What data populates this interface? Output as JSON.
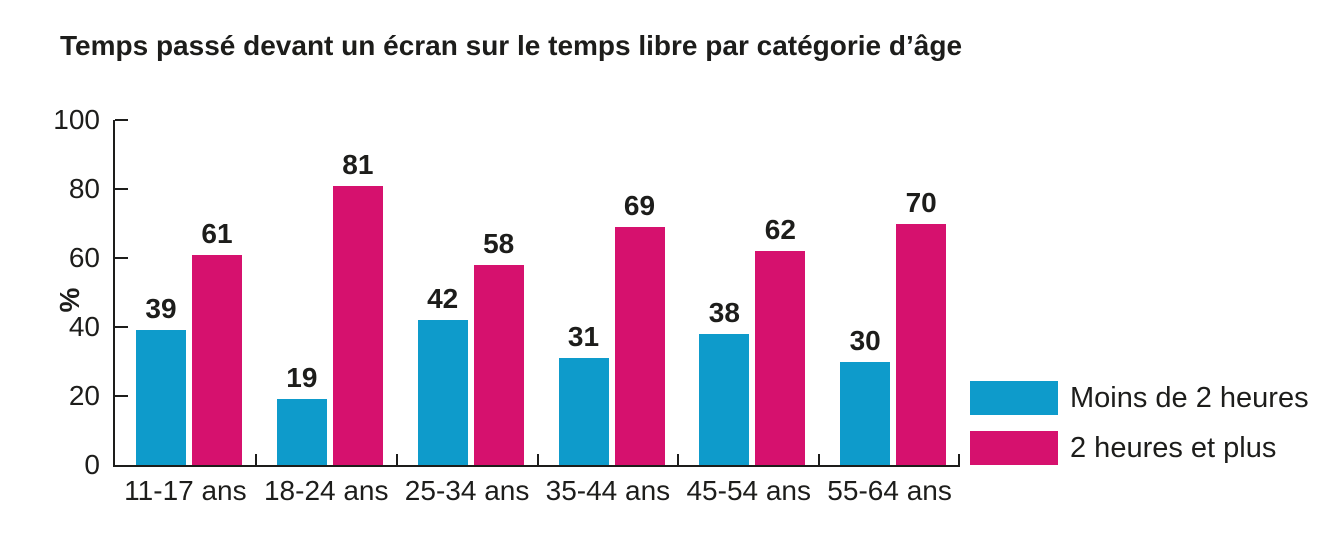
{
  "title": "Temps passé devant un écran sur le temps libre par catégorie d’âge",
  "chart_data": {
    "type": "bar",
    "title": "Temps passé devant un écran sur le temps libre par catégorie d’âge",
    "categories": [
      "11-17 ans",
      "18-24 ans",
      "25-34 ans",
      "35-44 ans",
      "45-54 ans",
      "55-64 ans"
    ],
    "series": [
      {
        "name": "Moins de 2 heures",
        "color": "#0e9bcb",
        "values": [
          39,
          19,
          42,
          31,
          38,
          30
        ]
      },
      {
        "name": "2 heures et plus",
        "color": "#d6116e",
        "values": [
          61,
          81,
          58,
          69,
          62,
          70
        ]
      }
    ],
    "xlabel": "",
    "ylabel": "%",
    "ylim": [
      0,
      100
    ],
    "yticks": [
      0,
      20,
      40,
      60,
      80,
      100
    ],
    "grid": false,
    "bar_value_labels": true,
    "legend_position": "bottom-right"
  },
  "colors": {
    "background": "#ffffff",
    "text": "#1d1d1b",
    "axis": "#1d1d1b",
    "series1": "#0e9bcb",
    "series2": "#d6116e"
  }
}
